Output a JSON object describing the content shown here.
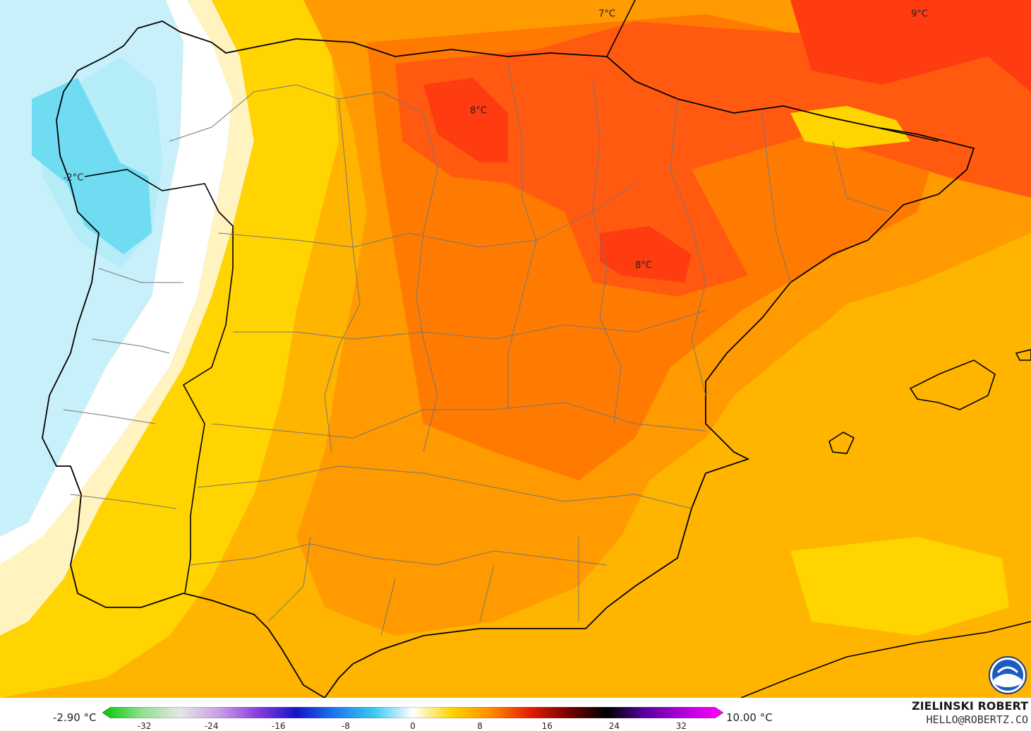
{
  "map": {
    "labels": [
      {
        "id": "label-7",
        "text": "7°C"
      },
      {
        "id": "label-9",
        "text": "9°C"
      },
      {
        "id": "label-8-north",
        "text": "8°C"
      },
      {
        "id": "label-minus2",
        "text": "-2°C"
      },
      {
        "id": "label-8-center",
        "text": "8°C"
      }
    ],
    "colors": {
      "sea_cold": "#c8f0fb",
      "cyan": "#6fdcf2",
      "cyan_light": "#b4ecf8",
      "white": "#ffffff",
      "cream": "#fff3c0",
      "yellow": "#ffd400",
      "amber": "#ffb400",
      "orange": "#ff9a00",
      "dark_orange": "#ff7a00",
      "red_orange": "#ff5a10",
      "red": "#ff3c10"
    }
  },
  "legend": {
    "min_value": "-2.90 °C",
    "max_value": "10.00 °C",
    "ticks": [
      "-32",
      "-24",
      "-16",
      "-8",
      "0",
      "8",
      "16",
      "24",
      "32"
    ],
    "stops": [
      "#00c800",
      "#8ce08c",
      "#e6e6e6",
      "#c8a0e6",
      "#8c3cdc",
      "#1414c8",
      "#1e78f0",
      "#3cc8f0",
      "#ffffff",
      "#ffd400",
      "#ff8c00",
      "#e61e00",
      "#780000",
      "#000000",
      "#5a00a0",
      "#b400dc",
      "#ff00ff"
    ]
  },
  "credits": {
    "author": "ZIELINSKI ROBERT",
    "email": "HELLO@ROBERTZ.CO",
    "logo": "noaa-logo"
  }
}
